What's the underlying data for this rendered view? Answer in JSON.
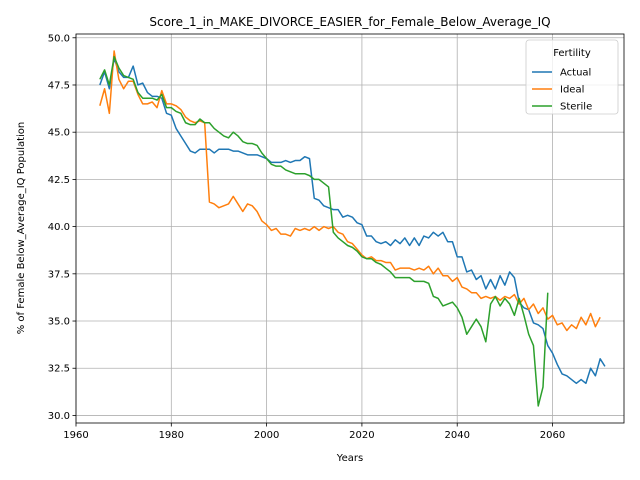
{
  "chart_data": {
    "type": "line",
    "title": "Score_1_in_MAKE_DIVORCE_EASIER_for_Female_Below_Average_IQ",
    "xlabel": "Years",
    "ylabel": "% of Female Below_Average_IQ Population",
    "xlim": [
      1960,
      2075
    ],
    "ylim": [
      29.6,
      50.2
    ],
    "xticks": [
      1960,
      1980,
      2000,
      2020,
      2040,
      2060
    ],
    "yticks": [
      30.0,
      32.5,
      35.0,
      37.5,
      40.0,
      42.5,
      45.0,
      47.5,
      50.0
    ],
    "ytick_labels": [
      "30.0",
      "32.5",
      "35.0",
      "37.5",
      "40.0",
      "42.5",
      "45.0",
      "47.5",
      "50.0"
    ],
    "grid": true,
    "legend": {
      "title": "Fertility",
      "placement": "top-right"
    },
    "series": [
      {
        "name": "Actual",
        "color": "#1f77b4",
        "points": [
          [
            1965,
            47.5
          ],
          [
            1966,
            48.2
          ],
          [
            1967,
            47.3
          ],
          [
            1968,
            48.9
          ],
          [
            1969,
            48.2
          ],
          [
            1970,
            47.9
          ],
          [
            1971,
            47.9
          ],
          [
            1972,
            48.5
          ],
          [
            1973,
            47.5
          ],
          [
            1974,
            47.6
          ],
          [
            1975,
            47.1
          ],
          [
            1976,
            46.9
          ],
          [
            1977,
            46.9
          ],
          [
            1978,
            46.8
          ],
          [
            1979,
            46.0
          ],
          [
            1980,
            45.9
          ],
          [
            1981,
            45.2
          ],
          [
            1982,
            44.8
          ],
          [
            1983,
            44.4
          ],
          [
            1984,
            44.0
          ],
          [
            1985,
            43.9
          ],
          [
            1986,
            44.1
          ],
          [
            1987,
            44.1
          ],
          [
            1988,
            44.1
          ],
          [
            1989,
            43.9
          ],
          [
            1990,
            44.1
          ],
          [
            1991,
            44.1
          ],
          [
            1992,
            44.1
          ],
          [
            1993,
            44.0
          ],
          [
            1994,
            44.0
          ],
          [
            1995,
            43.9
          ],
          [
            1996,
            43.8
          ],
          [
            1997,
            43.8
          ],
          [
            1998,
            43.8
          ],
          [
            1999,
            43.7
          ],
          [
            2000,
            43.6
          ],
          [
            2001,
            43.4
          ],
          [
            2002,
            43.4
          ],
          [
            2003,
            43.4
          ],
          [
            2004,
            43.5
          ],
          [
            2005,
            43.4
          ],
          [
            2006,
            43.5
          ],
          [
            2007,
            43.5
          ],
          [
            2008,
            43.7
          ],
          [
            2009,
            43.6
          ],
          [
            2010,
            41.5
          ],
          [
            2011,
            41.4
          ],
          [
            2012,
            41.1
          ],
          [
            2013,
            41.0
          ],
          [
            2014,
            40.9
          ],
          [
            2015,
            40.9
          ],
          [
            2016,
            40.5
          ],
          [
            2017,
            40.6
          ],
          [
            2018,
            40.5
          ],
          [
            2019,
            40.2
          ],
          [
            2020,
            40.1
          ],
          [
            2021,
            39.5
          ],
          [
            2022,
            39.5
          ],
          [
            2023,
            39.2
          ],
          [
            2024,
            39.1
          ],
          [
            2025,
            39.2
          ],
          [
            2026,
            39.0
          ],
          [
            2027,
            39.3
          ],
          [
            2028,
            39.1
          ],
          [
            2029,
            39.4
          ],
          [
            2030,
            39.0
          ],
          [
            2031,
            39.4
          ],
          [
            2032,
            39.0
          ],
          [
            2033,
            39.5
          ],
          [
            2034,
            39.4
          ],
          [
            2035,
            39.7
          ],
          [
            2036,
            39.5
          ],
          [
            2037,
            39.7
          ],
          [
            2038,
            39.2
          ],
          [
            2039,
            39.2
          ],
          [
            2040,
            38.4
          ],
          [
            2041,
            38.4
          ],
          [
            2042,
            37.6
          ],
          [
            2043,
            37.7
          ],
          [
            2044,
            37.2
          ],
          [
            2045,
            37.4
          ],
          [
            2046,
            36.7
          ],
          [
            2047,
            37.2
          ],
          [
            2048,
            36.7
          ],
          [
            2049,
            37.4
          ],
          [
            2050,
            36.9
          ],
          [
            2051,
            37.6
          ],
          [
            2052,
            37.3
          ],
          [
            2053,
            36.0
          ],
          [
            2054,
            35.7
          ],
          [
            2055,
            35.6
          ],
          [
            2056,
            34.9
          ],
          [
            2057,
            34.8
          ],
          [
            2058,
            34.6
          ],
          [
            2059,
            33.7
          ],
          [
            2060,
            33.3
          ],
          [
            2061,
            32.7
          ],
          [
            2062,
            32.2
          ],
          [
            2063,
            32.1
          ],
          [
            2064,
            31.9
          ],
          [
            2065,
            31.7
          ],
          [
            2066,
            31.9
          ],
          [
            2067,
            31.7
          ],
          [
            2068,
            32.5
          ],
          [
            2069,
            32.1
          ],
          [
            2070,
            33.0
          ],
          [
            2071,
            32.6
          ]
        ]
      },
      {
        "name": "Ideal",
        "color": "#ff7f0e",
        "points": [
          [
            1965,
            46.4
          ],
          [
            1966,
            47.3
          ],
          [
            1967,
            46.0
          ],
          [
            1968,
            49.3
          ],
          [
            1969,
            47.8
          ],
          [
            1970,
            47.3
          ],
          [
            1971,
            47.7
          ],
          [
            1972,
            47.7
          ],
          [
            1973,
            47.0
          ],
          [
            1974,
            46.5
          ],
          [
            1975,
            46.5
          ],
          [
            1976,
            46.6
          ],
          [
            1977,
            46.3
          ],
          [
            1978,
            47.2
          ],
          [
            1979,
            46.5
          ],
          [
            1980,
            46.5
          ],
          [
            1981,
            46.4
          ],
          [
            1982,
            46.2
          ],
          [
            1983,
            45.8
          ],
          [
            1984,
            45.6
          ],
          [
            1985,
            45.5
          ],
          [
            1986,
            45.6
          ],
          [
            1987,
            45.5
          ],
          [
            1988,
            41.3
          ],
          [
            1989,
            41.2
          ],
          [
            1990,
            41.0
          ],
          [
            1991,
            41.1
          ],
          [
            1992,
            41.2
          ],
          [
            1993,
            41.6
          ],
          [
            1994,
            41.2
          ],
          [
            1995,
            40.8
          ],
          [
            1996,
            41.2
          ],
          [
            1997,
            41.1
          ],
          [
            1998,
            40.8
          ],
          [
            1999,
            40.3
          ],
          [
            2000,
            40.1
          ],
          [
            2001,
            39.8
          ],
          [
            2002,
            39.9
          ],
          [
            2003,
            39.6
          ],
          [
            2004,
            39.6
          ],
          [
            2005,
            39.5
          ],
          [
            2006,
            39.9
          ],
          [
            2007,
            39.8
          ],
          [
            2008,
            39.9
          ],
          [
            2009,
            39.8
          ],
          [
            2010,
            40.0
          ],
          [
            2011,
            39.8
          ],
          [
            2012,
            40.0
          ],
          [
            2013,
            39.9
          ],
          [
            2014,
            40.0
          ],
          [
            2015,
            39.7
          ],
          [
            2016,
            39.6
          ],
          [
            2017,
            39.2
          ],
          [
            2018,
            39.1
          ],
          [
            2019,
            38.8
          ],
          [
            2020,
            38.5
          ],
          [
            2021,
            38.3
          ],
          [
            2022,
            38.4
          ],
          [
            2023,
            38.2
          ],
          [
            2024,
            38.2
          ],
          [
            2025,
            38.1
          ],
          [
            2026,
            38.1
          ],
          [
            2027,
            37.7
          ],
          [
            2028,
            37.8
          ],
          [
            2029,
            37.8
          ],
          [
            2030,
            37.8
          ],
          [
            2031,
            37.7
          ],
          [
            2032,
            37.8
          ],
          [
            2033,
            37.7
          ],
          [
            2034,
            37.9
          ],
          [
            2035,
            37.5
          ],
          [
            2036,
            37.8
          ],
          [
            2037,
            37.4
          ],
          [
            2038,
            37.4
          ],
          [
            2039,
            37.1
          ],
          [
            2040,
            37.3
          ],
          [
            2041,
            36.8
          ],
          [
            2042,
            36.7
          ],
          [
            2043,
            36.5
          ],
          [
            2044,
            36.5
          ],
          [
            2045,
            36.2
          ],
          [
            2046,
            36.3
          ],
          [
            2047,
            36.2
          ],
          [
            2048,
            36.3
          ],
          [
            2049,
            36.1
          ],
          [
            2050,
            36.3
          ],
          [
            2051,
            36.2
          ],
          [
            2052,
            36.4
          ],
          [
            2053,
            35.9
          ],
          [
            2054,
            36.2
          ],
          [
            2055,
            35.6
          ],
          [
            2056,
            35.9
          ],
          [
            2057,
            35.4
          ],
          [
            2058,
            35.7
          ],
          [
            2059,
            35.1
          ],
          [
            2060,
            35.3
          ],
          [
            2061,
            34.8
          ],
          [
            2062,
            34.9
          ],
          [
            2063,
            34.5
          ],
          [
            2064,
            34.8
          ],
          [
            2065,
            34.6
          ],
          [
            2066,
            35.2
          ],
          [
            2067,
            34.8
          ],
          [
            2068,
            35.4
          ],
          [
            2069,
            34.7
          ],
          [
            2070,
            35.2
          ]
        ]
      },
      {
        "name": "Sterile",
        "color": "#2ca02c",
        "points": [
          [
            1965,
            47.8
          ],
          [
            1966,
            48.3
          ],
          [
            1967,
            47.5
          ],
          [
            1968,
            49.0
          ],
          [
            1969,
            48.4
          ],
          [
            1970,
            48.0
          ],
          [
            1971,
            47.9
          ],
          [
            1972,
            47.8
          ],
          [
            1973,
            47.1
          ],
          [
            1974,
            46.8
          ],
          [
            1975,
            46.8
          ],
          [
            1976,
            46.8
          ],
          [
            1977,
            46.7
          ],
          [
            1978,
            47.0
          ],
          [
            1979,
            46.3
          ],
          [
            1980,
            46.3
          ],
          [
            1981,
            46.1
          ],
          [
            1982,
            46.0
          ],
          [
            1983,
            45.5
          ],
          [
            1984,
            45.4
          ],
          [
            1985,
            45.4
          ],
          [
            1986,
            45.7
          ],
          [
            1987,
            45.5
          ],
          [
            1988,
            45.5
          ],
          [
            1989,
            45.2
          ],
          [
            1990,
            45.0
          ],
          [
            1991,
            44.8
          ],
          [
            1992,
            44.7
          ],
          [
            1993,
            45.0
          ],
          [
            1994,
            44.8
          ],
          [
            1995,
            44.5
          ],
          [
            1996,
            44.4
          ],
          [
            1997,
            44.4
          ],
          [
            1998,
            44.3
          ],
          [
            1999,
            43.9
          ],
          [
            2000,
            43.6
          ],
          [
            2001,
            43.3
          ],
          [
            2002,
            43.2
          ],
          [
            2003,
            43.2
          ],
          [
            2004,
            43.0
          ],
          [
            2005,
            42.9
          ],
          [
            2006,
            42.8
          ],
          [
            2007,
            42.8
          ],
          [
            2008,
            42.8
          ],
          [
            2009,
            42.7
          ],
          [
            2010,
            42.5
          ],
          [
            2011,
            42.5
          ],
          [
            2012,
            42.3
          ],
          [
            2013,
            42.1
          ],
          [
            2014,
            39.7
          ],
          [
            2015,
            39.4
          ],
          [
            2016,
            39.2
          ],
          [
            2017,
            39.0
          ],
          [
            2018,
            38.9
          ],
          [
            2019,
            38.7
          ],
          [
            2020,
            38.4
          ],
          [
            2021,
            38.3
          ],
          [
            2022,
            38.3
          ],
          [
            2023,
            38.1
          ],
          [
            2024,
            38.0
          ],
          [
            2025,
            37.8
          ],
          [
            2026,
            37.6
          ],
          [
            2027,
            37.3
          ],
          [
            2028,
            37.3
          ],
          [
            2029,
            37.3
          ],
          [
            2030,
            37.3
          ],
          [
            2031,
            37.1
          ],
          [
            2032,
            37.1
          ],
          [
            2033,
            37.1
          ],
          [
            2034,
            37.0
          ],
          [
            2035,
            36.3
          ],
          [
            2036,
            36.2
          ],
          [
            2037,
            35.8
          ],
          [
            2038,
            35.9
          ],
          [
            2039,
            36.0
          ],
          [
            2040,
            35.7
          ],
          [
            2041,
            35.2
          ],
          [
            2042,
            34.3
          ],
          [
            2043,
            34.7
          ],
          [
            2044,
            35.1
          ],
          [
            2045,
            34.7
          ],
          [
            2046,
            33.9
          ],
          [
            2047,
            35.9
          ],
          [
            2048,
            36.3
          ],
          [
            2049,
            35.8
          ],
          [
            2050,
            36.2
          ],
          [
            2051,
            35.9
          ],
          [
            2052,
            35.3
          ],
          [
            2053,
            36.2
          ],
          [
            2054,
            35.3
          ],
          [
            2055,
            34.3
          ],
          [
            2056,
            33.7
          ],
          [
            2057,
            30.5
          ],
          [
            2058,
            31.5
          ],
          [
            2059,
            36.5
          ]
        ]
      }
    ]
  }
}
